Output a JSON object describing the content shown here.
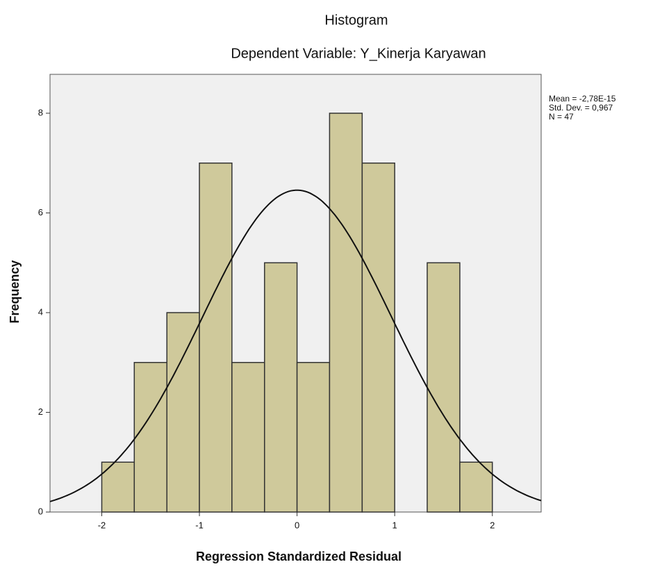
{
  "chart_data": {
    "type": "histogram",
    "title": "Histogram",
    "subtitle": "Dependent Variable: Y_Kinerja Karyawan",
    "x_label": "Regression Standardized Residual",
    "y_label": "Frequency",
    "bins": [
      -2,
      -1.667,
      -1.333,
      -1,
      -0.667,
      -0.333,
      0,
      0.333,
      0.667,
      1,
      1.333,
      1.667,
      2
    ],
    "counts": [
      1,
      3,
      4,
      7,
      3,
      5,
      3,
      8,
      7,
      0,
      5,
      1
    ],
    "color": "#cfc99b",
    "background": "#f0f0f0",
    "xlim": [
      -2.53,
      2.5
    ],
    "xticks": [
      -2,
      -1,
      0,
      1,
      2
    ],
    "ylim": [
      0,
      8.78
    ],
    "yticks": [
      0,
      2,
      4,
      6,
      8
    ],
    "normal_curve": {
      "mean": -2.78e-15,
      "std": 0.967,
      "n": 47
    },
    "stats": [
      "Mean = -2,78E-15",
      "Std. Dev. = 0,967",
      "N = 47"
    ]
  }
}
